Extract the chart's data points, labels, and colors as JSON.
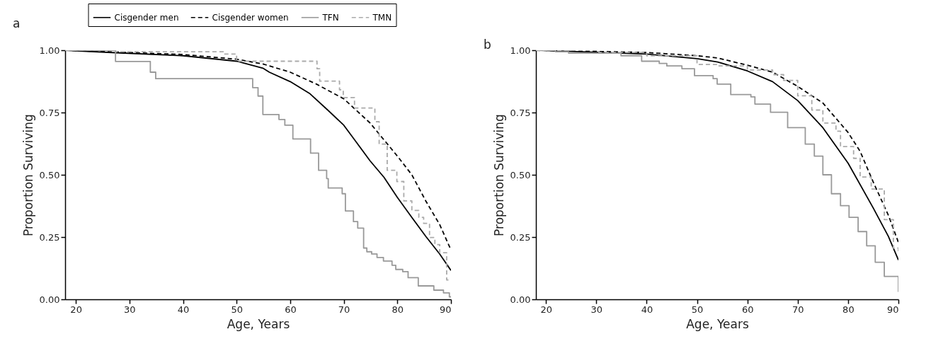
{
  "chart_data": [
    {
      "type": "line",
      "title": "a",
      "xlabel": "Age, Years",
      "ylabel": "Proportion Surviving",
      "xlim": [
        18,
        90
      ],
      "ylim": [
        0,
        1
      ],
      "xticks": [
        20,
        30,
        40,
        50,
        60,
        70,
        80,
        90
      ],
      "yticks": [
        {
          "value": 0,
          "label": "0.00"
        },
        {
          "value": 0.25,
          "label": "0.25"
        },
        {
          "value": 0.5,
          "label": "0.50"
        },
        {
          "value": 0.75,
          "label": "0.75"
        },
        {
          "value": 1,
          "label": "1.00"
        }
      ],
      "grid": false,
      "legend": "top",
      "series": [
        {
          "name": "Cisgender men",
          "type": "line",
          "line_style": "solid",
          "color": "#000000",
          "x": [
            18,
            27.4,
            40,
            50,
            54.9,
            56.1,
            60,
            63.6,
            67,
            70,
            72.3,
            74.9,
            77.5,
            80,
            82.7,
            85.3,
            87.9,
            90
          ],
          "values": [
            1,
            0.99,
            0.978,
            0.956,
            0.928,
            0.912,
            0.874,
            0.827,
            0.76,
            0.699,
            0.632,
            0.556,
            0.49,
            0.409,
            0.329,
            0.253,
            0.182,
            0.116
          ]
        },
        {
          "name": "Cisgender women",
          "type": "line",
          "line_style": "dashed",
          "color": "#000000",
          "x": [
            18,
            40,
            50,
            54.9,
            60,
            64.9,
            70,
            74.9,
            80,
            82.7,
            85.3,
            87.9,
            90
          ],
          "values": [
            1,
            0.983,
            0.964,
            0.945,
            0.912,
            0.864,
            0.805,
            0.708,
            0.575,
            0.5,
            0.395,
            0.3,
            0.198
          ]
        },
        {
          "name": "TFN",
          "type": "step",
          "line_style": "solid",
          "color": "#999999",
          "x": [
            18,
            27.4,
            33.9,
            34.9,
            53,
            54,
            54.9,
            57.9,
            59,
            60.5,
            63.8,
            65.3,
            66.8,
            67.1,
            69.7,
            70.3,
            71.8,
            72.6,
            73.7,
            74.3,
            75.2,
            76.2,
            77.4,
            79,
            79.7,
            81,
            82,
            83.9,
            86.8,
            88.6,
            89.7,
            90
          ],
          "values": [
            1,
            0.955,
            0.912,
            0.886,
            0.85,
            0.816,
            0.742,
            0.722,
            0.699,
            0.644,
            0.587,
            0.518,
            0.485,
            0.447,
            0.424,
            0.355,
            0.312,
            0.286,
            0.206,
            0.191,
            0.182,
            0.168,
            0.154,
            0.137,
            0.12,
            0.111,
            0.087,
            0.054,
            0.037,
            0.026,
            0.01,
            0.01
          ]
        },
        {
          "name": "TMN",
          "type": "step",
          "line_style": "dashed",
          "color": "#aaaaaa",
          "x": [
            18,
            27.4,
            47.5,
            50,
            65,
            65.5,
            69.2,
            69.9,
            72,
            75.8,
            76.6,
            78.1,
            79.9,
            81.2,
            82.7,
            84,
            84.9,
            86,
            87,
            87.9,
            89.2,
            90
          ],
          "values": [
            1,
            0.994,
            0.985,
            0.956,
            0.926,
            0.876,
            0.841,
            0.81,
            0.768,
            0.713,
            0.623,
            0.518,
            0.473,
            0.395,
            0.357,
            0.329,
            0.305,
            0.248,
            0.22,
            0.187,
            0.078,
            0.078
          ]
        }
      ]
    },
    {
      "type": "line",
      "title": "b",
      "xlabel": "Age, Years",
      "ylabel": "Proportion Surviving",
      "xlim": [
        18,
        90
      ],
      "ylim": [
        0,
        1
      ],
      "xticks": [
        20,
        30,
        40,
        50,
        60,
        70,
        80,
        90
      ],
      "yticks": [
        {
          "value": 0,
          "label": "0.00"
        },
        {
          "value": 0.25,
          "label": "0.25"
        },
        {
          "value": 0.5,
          "label": "0.50"
        },
        {
          "value": 0.75,
          "label": "0.75"
        },
        {
          "value": 1,
          "label": "1.00"
        }
      ],
      "grid": false,
      "series": [
        {
          "type": "line",
          "line_style": "solid",
          "color": "#000000",
          "x": [
            18,
            30,
            40,
            50,
            54.1,
            60,
            65,
            70,
            75,
            80,
            85,
            88,
            90
          ],
          "values": [
            1,
            0.992,
            0.985,
            0.966,
            0.953,
            0.917,
            0.874,
            0.798,
            0.689,
            0.547,
            0.367,
            0.253,
            0.158
          ]
        },
        {
          "type": "line",
          "line_style": "dashed",
          "color": "#000000",
          "x": [
            18,
            40,
            50,
            54.1,
            60,
            65,
            70,
            75,
            80,
            82.4,
            85,
            88,
            90
          ],
          "values": [
            1,
            0.991,
            0.978,
            0.969,
            0.94,
            0.912,
            0.855,
            0.788,
            0.67,
            0.594,
            0.471,
            0.338,
            0.229
          ]
        },
        {
          "type": "step",
          "line_style": "solid",
          "color": "#999999",
          "x": [
            18,
            21.9,
            24.5,
            34.9,
            39,
            42.5,
            44,
            47,
            49.5,
            53.2,
            54,
            56.7,
            60.7,
            61.5,
            64.6,
            68,
            71.5,
            73.3,
            75,
            76.7,
            78.5,
            80.2,
            82,
            83.7,
            85.4,
            87.2,
            90
          ],
          "values": [
            1,
            0.994,
            0.988,
            0.978,
            0.956,
            0.947,
            0.937,
            0.926,
            0.898,
            0.886,
            0.864,
            0.822,
            0.813,
            0.784,
            0.751,
            0.689,
            0.623,
            0.575,
            0.5,
            0.424,
            0.376,
            0.329,
            0.272,
            0.215,
            0.149,
            0.092,
            0.03
          ]
        },
        {
          "type": "step",
          "line_style": "dashed",
          "color": "#aaaaaa",
          "x": [
            18,
            30.5,
            40,
            50,
            54.1,
            60,
            65,
            67.2,
            70,
            72.8,
            75,
            77.6,
            78.5,
            81.1,
            82.4,
            84.6,
            87.2,
            89,
            90
          ],
          "values": [
            1,
            0.991,
            0.978,
            0.943,
            0.937,
            0.921,
            0.902,
            0.879,
            0.817,
            0.76,
            0.708,
            0.675,
            0.613,
            0.566,
            0.491,
            0.443,
            0.32,
            0.206,
            0.182
          ]
        }
      ]
    }
  ]
}
